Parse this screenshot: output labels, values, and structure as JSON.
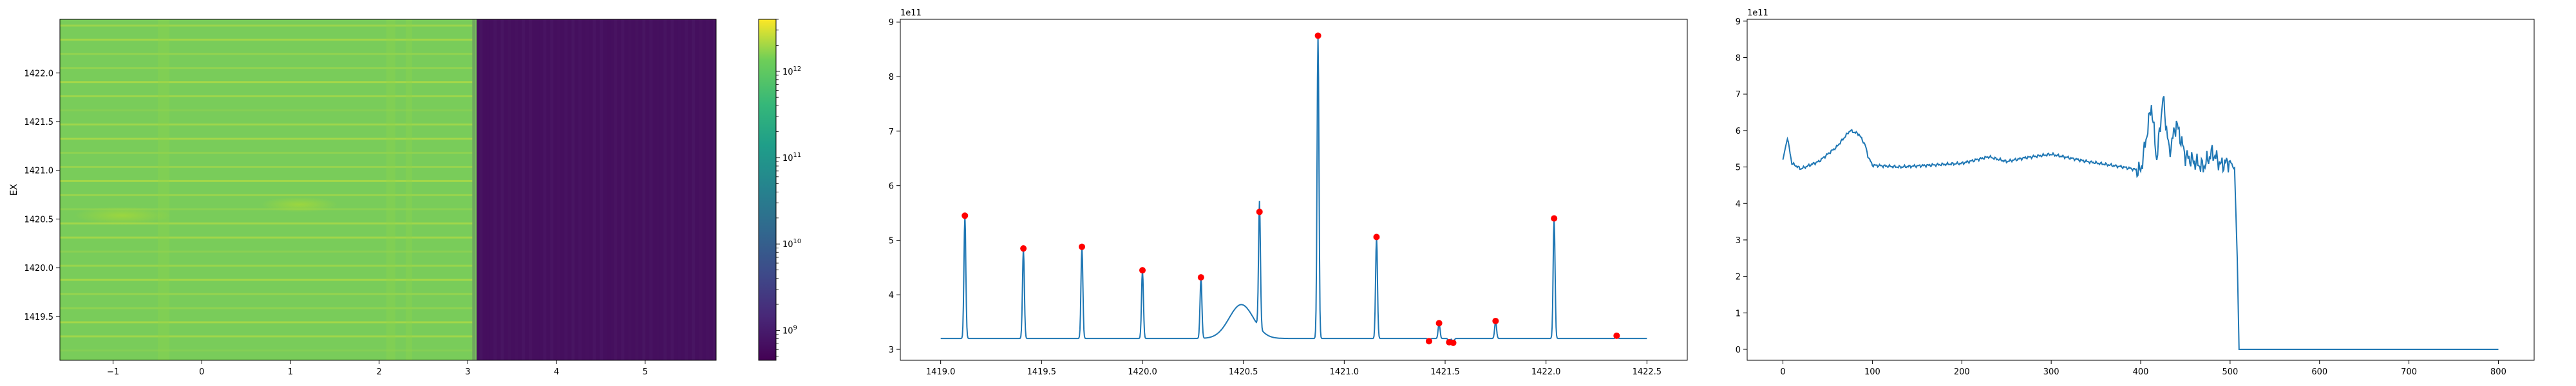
{
  "chart_data": [
    {
      "type": "heatmap",
      "xlabel": "",
      "ylabel": "EX",
      "xlim": [
        -1.6,
        5.8
      ],
      "ylim": [
        1419.05,
        1422.55
      ],
      "x_ticks": [
        "−1",
        "0",
        "1",
        "2",
        "3",
        "4",
        "5"
      ],
      "y_ticks": [
        "1419.5",
        "1420.0",
        "1420.5",
        "1421.0",
        "1421.5",
        "1422.0"
      ],
      "bright_region_x": [
        -1.6,
        3.05
      ],
      "dark_region_x": [
        3.05,
        5.8
      ],
      "bright_color": "#79cc5a",
      "dark_color": "#450f5e",
      "colorbar": {
        "scale": "log",
        "colormap": "viridis",
        "range": [
          450000000,
          4000000000000
        ],
        "tick_labels": [
          "10^12",
          "10^11",
          "10^10",
          "10^9"
        ],
        "tick_values": [
          1000000000000,
          100000000000,
          10000000000,
          1000000000
        ]
      }
    },
    {
      "type": "line",
      "offset_label": "1e11",
      "xlim": [
        1418.8,
        1422.7
      ],
      "ylim": [
        2.8,
        9.05
      ],
      "x_ticks": [
        "1419.0",
        "1419.5",
        "1420.0",
        "1420.5",
        "1421.0",
        "1421.5",
        "1422.0",
        "1422.5"
      ],
      "y_ticks": [
        "3",
        "4",
        "5",
        "6",
        "7",
        "8",
        "9"
      ],
      "line_color": "#1f77b4",
      "peak_color": "#ff0000",
      "peaks": [
        {
          "x": 1419.12,
          "y": 5.45
        },
        {
          "x": 1419.41,
          "y": 4.85
        },
        {
          "x": 1419.7,
          "y": 4.88
        },
        {
          "x": 1420.0,
          "y": 4.45
        },
        {
          "x": 1420.29,
          "y": 4.32
        },
        {
          "x": 1420.58,
          "y": 5.52
        },
        {
          "x": 1420.87,
          "y": 8.75
        },
        {
          "x": 1421.16,
          "y": 5.06
        },
        {
          "x": 1421.42,
          "y": 3.15
        },
        {
          "x": 1421.47,
          "y": 3.48
        },
        {
          "x": 1421.52,
          "y": 3.13
        },
        {
          "x": 1421.54,
          "y": 3.12
        },
        {
          "x": 1421.75,
          "y": 3.52
        },
        {
          "x": 1422.04,
          "y": 5.4
        },
        {
          "x": 1422.35,
          "y": 3.25
        }
      ],
      "baseline": 3.2,
      "bump": {
        "center": 1420.49,
        "height": 3.82,
        "width": 0.085
      },
      "x_range": [
        1419.0,
        1422.5
      ]
    },
    {
      "type": "line",
      "offset_label": "1e11",
      "xlim": [
        -40,
        840
      ],
      "ylim": [
        -0.3,
        9.05
      ],
      "x_ticks": [
        "0",
        "100",
        "200",
        "300",
        "400",
        "500",
        "600",
        "700",
        "800"
      ],
      "y_ticks": [
        "0",
        "1",
        "2",
        "3",
        "4",
        "5",
        "6",
        "7",
        "8",
        "9"
      ],
      "line_color": "#1f77b4",
      "keypoints": [
        [
          0,
          5.2
        ],
        [
          5,
          5.8
        ],
        [
          10,
          5.1
        ],
        [
          20,
          4.95
        ],
        [
          40,
          5.15
        ],
        [
          60,
          5.55
        ],
        [
          75,
          6.0
        ],
        [
          85,
          5.9
        ],
        [
          92,
          5.6
        ],
        [
          95,
          5.3
        ],
        [
          100,
          5.05
        ],
        [
          130,
          5.0
        ],
        [
          200,
          5.1
        ],
        [
          230,
          5.28
        ],
        [
          250,
          5.15
        ],
        [
          270,
          5.25
        ],
        [
          300,
          5.35
        ],
        [
          340,
          5.15
        ],
        [
          380,
          5.0
        ],
        [
          400,
          4.9
        ],
        [
          405,
          5.6
        ],
        [
          412,
          6.7
        ],
        [
          418,
          5.2
        ],
        [
          425,
          6.9
        ],
        [
          432,
          5.4
        ],
        [
          440,
          6.2
        ],
        [
          450,
          5.3
        ],
        [
          470,
          5.0
        ],
        [
          480,
          5.4
        ],
        [
          490,
          5.05
        ],
        [
          500,
          5.15
        ],
        [
          505,
          4.95
        ],
        [
          508,
          2.5
        ],
        [
          510,
          0.0
        ],
        [
          800,
          0.0
        ]
      ]
    }
  ]
}
